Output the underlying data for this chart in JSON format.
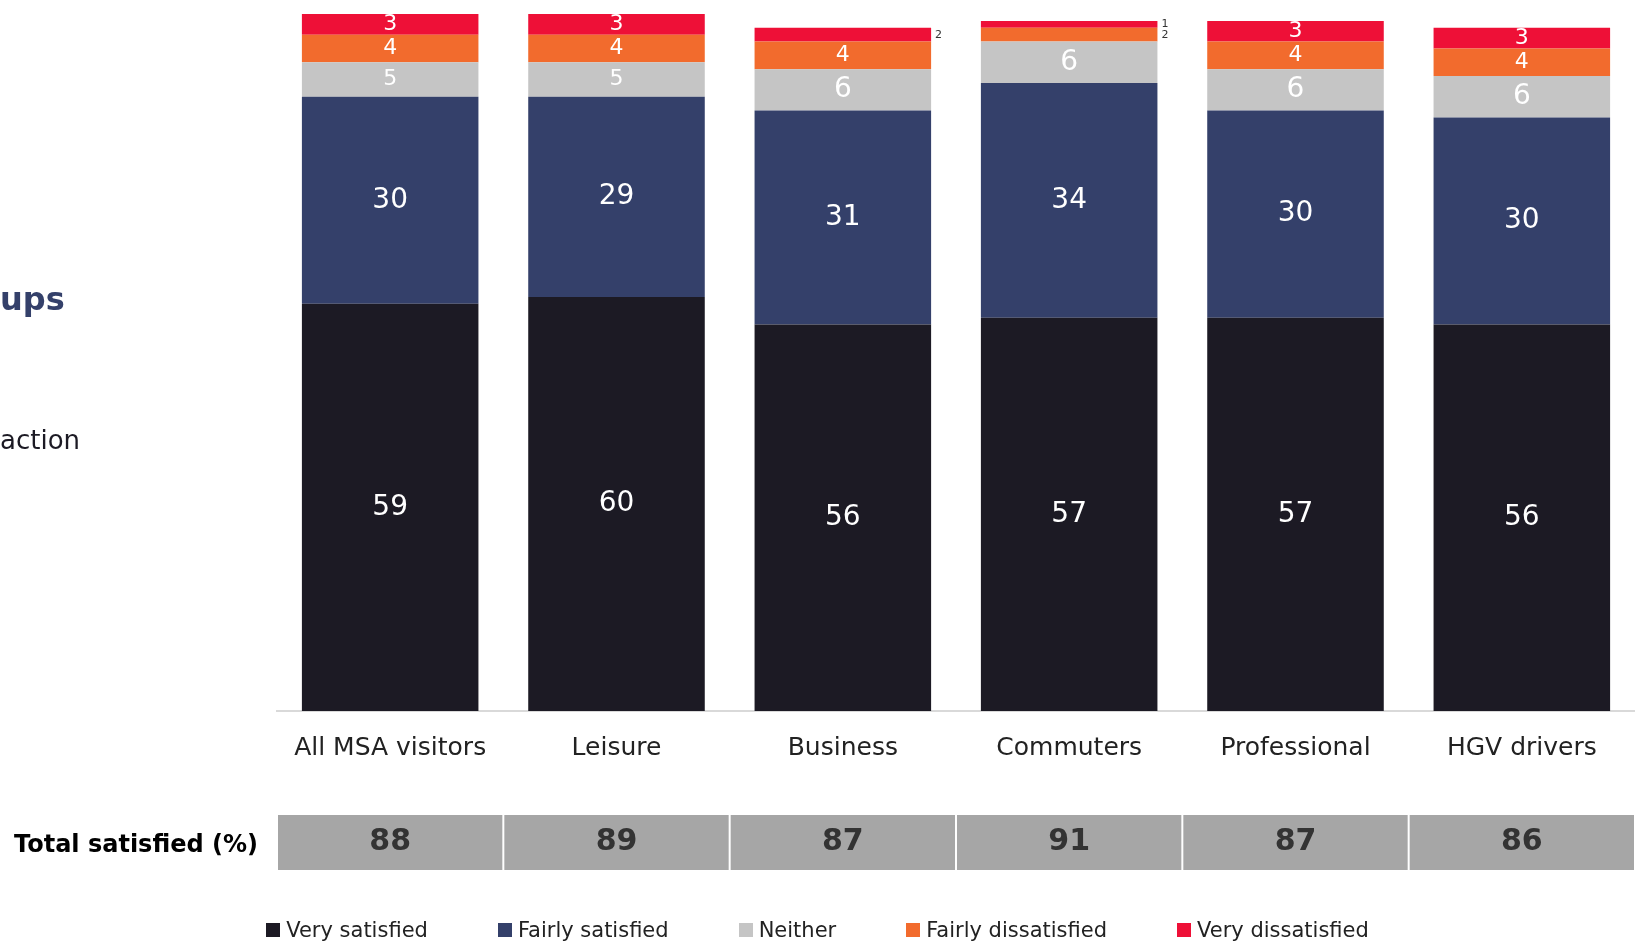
{
  "chart_data": {
    "type": "bar",
    "stacked": true,
    "data_labels": true,
    "tick_labels": "x",
    "grid": false,
    "legend": "bottom",
    "categories": [
      "All MSA visitors",
      "Leisure",
      "Business",
      "Commuters",
      "Professional",
      "HGV drivers"
    ],
    "series": [
      {
        "name": "Very satisfied",
        "color": "#1c1a24",
        "values": [
          59,
          60,
          56,
          57,
          57,
          56
        ]
      },
      {
        "name": "Fairly satisfied",
        "color": "#34406a",
        "values": [
          30,
          29,
          31,
          34,
          30,
          30
        ]
      },
      {
        "name": "Neither",
        "color": "#c5c5c5",
        "values": [
          5,
          5,
          6,
          6,
          6,
          6
        ]
      },
      {
        "name": "Fairly dissatisfied",
        "color": "#f26b2d",
        "values": [
          4,
          4,
          4,
          2,
          4,
          4
        ]
      },
      {
        "name": "Very dissatisfied",
        "color": "#ee1037",
        "values": [
          3,
          3,
          2,
          1,
          3,
          3
        ]
      }
    ],
    "annotations": [
      "ups",
      "action",
      "Total satisfied (%)",
      "88",
      "89",
      "87",
      "91",
      "87",
      "86"
    ]
  }
}
